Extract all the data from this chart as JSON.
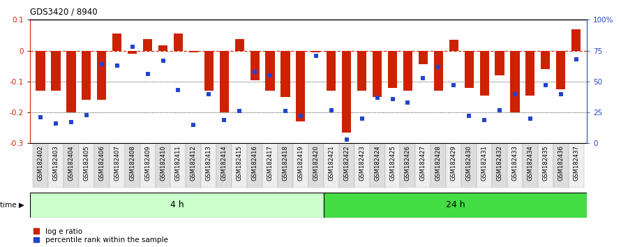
{
  "title": "GDS3420 / 8940",
  "samples": [
    "GSM182402",
    "GSM182403",
    "GSM182404",
    "GSM182405",
    "GSM182406",
    "GSM182407",
    "GSM182408",
    "GSM182409",
    "GSM182410",
    "GSM182411",
    "GSM182412",
    "GSM182413",
    "GSM182414",
    "GSM182415",
    "GSM182416",
    "GSM182417",
    "GSM182418",
    "GSM182419",
    "GSM182420",
    "GSM182421",
    "GSM182422",
    "GSM182423",
    "GSM182424",
    "GSM182425",
    "GSM182426",
    "GSM182427",
    "GSM182428",
    "GSM182429",
    "GSM182430",
    "GSM182431",
    "GSM182432",
    "GSM182433",
    "GSM182434",
    "GSM182435",
    "GSM182436",
    "GSM182437"
  ],
  "log_ratio": [
    -0.13,
    -0.13,
    -0.2,
    -0.16,
    -0.16,
    0.055,
    -0.01,
    0.038,
    0.018,
    0.055,
    -0.005,
    -0.13,
    -0.2,
    0.038,
    -0.095,
    -0.13,
    -0.15,
    -0.23,
    -0.005,
    -0.13,
    -0.265,
    -0.13,
    -0.15,
    -0.12,
    -0.13,
    -0.045,
    -0.13,
    0.035,
    -0.12,
    -0.145,
    -0.08,
    -0.2,
    -0.145,
    -0.06,
    -0.125,
    0.07
  ],
  "percentile": [
    21,
    16,
    17,
    23,
    64,
    63,
    78,
    56,
    67,
    43,
    15,
    40,
    19,
    26,
    58,
    55,
    26,
    22,
    71,
    27,
    3,
    20,
    37,
    36,
    33,
    53,
    62,
    47,
    22,
    19,
    27,
    40,
    20,
    47,
    40,
    68
  ],
  "group1_count": 19,
  "group1_label": "4 h",
  "group2_label": "24 h",
  "ylim_left": [
    -0.3,
    0.1
  ],
  "ylim_right": [
    0,
    100
  ],
  "bar_color": "#cc2200",
  "dot_color": "#2244cc",
  "zero_line_color": "#cc2200",
  "group1_bg": "#ccffcc",
  "group2_bg": "#44dd44",
  "time_label": "time",
  "legend_bar": "log e ratio",
  "legend_dot": "percentile rank within the sample",
  "right_axis_ticks": [
    0,
    25,
    50,
    75,
    100
  ],
  "right_axis_labels": [
    "0",
    "25",
    "50",
    "75",
    "100%"
  ],
  "left_axis_ticks": [
    -0.3,
    -0.2,
    -0.1,
    0.0,
    0.1
  ],
  "left_axis_labels": [
    "-0.3",
    "-0.2",
    "-0.1",
    "0",
    "0.1"
  ]
}
